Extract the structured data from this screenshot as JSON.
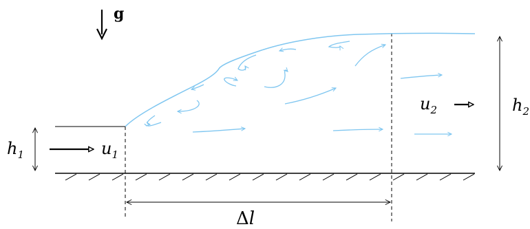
{
  "labels": {
    "gravity": "g",
    "h1": "h",
    "h1_sub": "1",
    "h2": "h",
    "h2_sub": "2",
    "u1": "u",
    "u1_sub": "1",
    "u2": "u",
    "u2_sub": "2",
    "delta_l_symbol": "Δ",
    "delta_l_var": "l"
  },
  "colors": {
    "ink": "#000000",
    "water": "#7fc6f0"
  }
}
